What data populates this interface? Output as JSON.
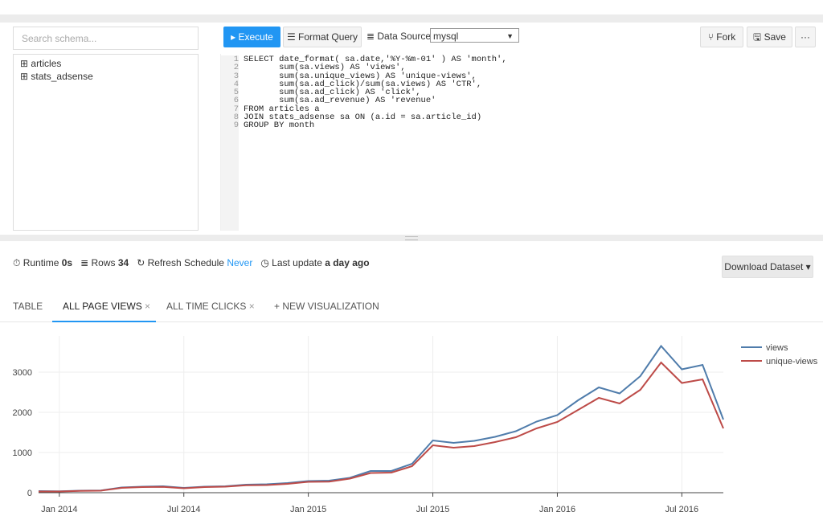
{
  "toolbar": {
    "execute": "Execute",
    "format_query": "Format Query",
    "data_source_label": "Data Source",
    "data_source": "mysql",
    "fork": "Fork",
    "save": "Save",
    "more": "···"
  },
  "schema": {
    "search_placeholder": "Search schema...",
    "tables": [
      "articles",
      "stats_adsense"
    ]
  },
  "editor": {
    "line_numbers": [
      1,
      2,
      3,
      4,
      5,
      6,
      7,
      8,
      9
    ],
    "lines": [
      "SELECT date_format( sa.date,'%Y-%m-01' ) AS 'month',",
      "       sum(sa.views) AS 'views',",
      "       sum(sa.unique_views) AS 'unique-views',",
      "       sum(sa.ad_click)/sum(sa.views) AS 'CTR',",
      "       sum(sa.ad_click) AS 'click',",
      "       sum(sa.ad_revenue) AS 'revenue'",
      "FROM articles a",
      "JOIN stats_adsense sa ON (a.id = sa.article_id)",
      "GROUP BY month"
    ]
  },
  "status": {
    "runtime_label": "Runtime",
    "runtime": "0s",
    "rows_label": "Rows",
    "rows": 34,
    "refresh_label": "Refresh Schedule",
    "refresh": "Never",
    "last_update_label": "Last update",
    "last_update": "a day ago",
    "download": "Download Dataset"
  },
  "tabs": [
    "TABLE",
    "ALL PAGE VIEWS",
    "ALL TIME CLICKS",
    "+ NEW VISUALIZATION"
  ],
  "chart": {
    "type": "line",
    "x": [
      "2013-12",
      "2014-01",
      "2014-02",
      "2014-03",
      "2014-04",
      "2014-05",
      "2014-06",
      "2014-07",
      "2014-08",
      "2014-09",
      "2014-10",
      "2014-11",
      "2014-12",
      "2015-01",
      "2015-02",
      "2015-03",
      "2015-04",
      "2015-05",
      "2015-06",
      "2015-07",
      "2015-08",
      "2015-09",
      "2015-10",
      "2015-11",
      "2015-12",
      "2016-01",
      "2016-02",
      "2016-03",
      "2016-04",
      "2016-05",
      "2016-06",
      "2016-07",
      "2016-08",
      "2016-09"
    ],
    "series": [
      {
        "name": "views",
        "color": "#4f7cab",
        "values": [
          40,
          35,
          50,
          55,
          130,
          150,
          160,
          120,
          150,
          160,
          200,
          210,
          240,
          290,
          300,
          370,
          540,
          540,
          720,
          1300,
          1240,
          1290,
          1390,
          1530,
          1770,
          1930,
          2300,
          2620,
          2470,
          2900,
          3650,
          3070,
          3180,
          1820
        ]
      },
      {
        "name": "unique-views",
        "color": "#bd4b48",
        "values": [
          30,
          30,
          45,
          50,
          120,
          140,
          145,
          110,
          140,
          150,
          185,
          190,
          220,
          270,
          275,
          350,
          490,
          500,
          660,
          1180,
          1120,
          1160,
          1260,
          1380,
          1600,
          1760,
          2060,
          2360,
          2220,
          2560,
          3240,
          2730,
          2820,
          1600
        ]
      }
    ],
    "ylim": [
      0,
      3900
    ],
    "yticks": [
      0,
      1000,
      2000,
      3000
    ],
    "xticks": [
      {
        "value": "2014-01",
        "label": "Jan 2014"
      },
      {
        "value": "2014-07",
        "label": "Jul 2014"
      },
      {
        "value": "2015-01",
        "label": "Jan 2015"
      },
      {
        "value": "2015-07",
        "label": "Jul 2015"
      },
      {
        "value": "2016-01",
        "label": "Jan 2016"
      },
      {
        "value": "2016-07",
        "label": "Jul 2016"
      }
    ],
    "grid": true
  }
}
